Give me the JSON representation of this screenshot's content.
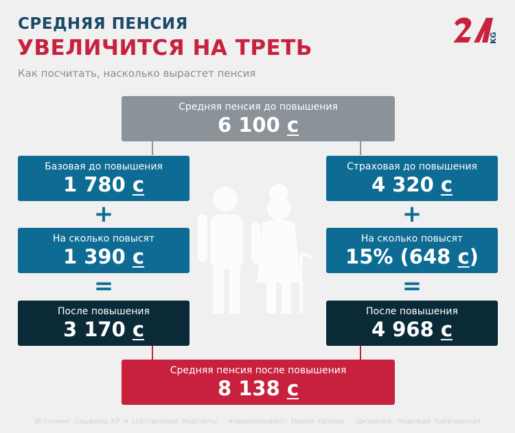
{
  "header": {
    "title_line1": "СРЕДНЯЯ ПЕНСИЯ",
    "title_line2": "УВЕЛИЧИТСЯ НА ТРЕТЬ",
    "subtitle": "Как посчитать, насколько вырастет пенсия",
    "logo_text": "24 KG"
  },
  "currency": "с",
  "top": {
    "label": "Средняя пенсия до повышения",
    "value": "6 100"
  },
  "left": [
    {
      "label": "Базовая до повышения",
      "value": "1 780"
    },
    {
      "label": "На сколько повысят",
      "value": "1 390"
    },
    {
      "label": "После повышения",
      "value": "3 170"
    }
  ],
  "right": [
    {
      "label": "Страховая до повышения",
      "value": "4 320"
    },
    {
      "label": "На сколько повысят",
      "value_prefix": "15% (648",
      "value_suffix": ")"
    },
    {
      "label": "После повышения",
      "value": "4 968"
    }
  ],
  "operators": {
    "plus": "+",
    "equals": "="
  },
  "bottom": {
    "label": "Средняя пенсия после повышения",
    "value": "8 138"
  },
  "footer": {
    "source": "Источник: Соцфонд КР и собственные подсчеты",
    "correspondent": "Корреспондент: Мария Орлова",
    "designer": "Дизайнер: Надежда Хабичевская"
  },
  "colors": {
    "title_blue": "#184a68",
    "accent_red": "#c8213e",
    "box_gray": "#8b9399",
    "box_blue": "#0e6b93",
    "box_dark": "#0a2a38"
  }
}
